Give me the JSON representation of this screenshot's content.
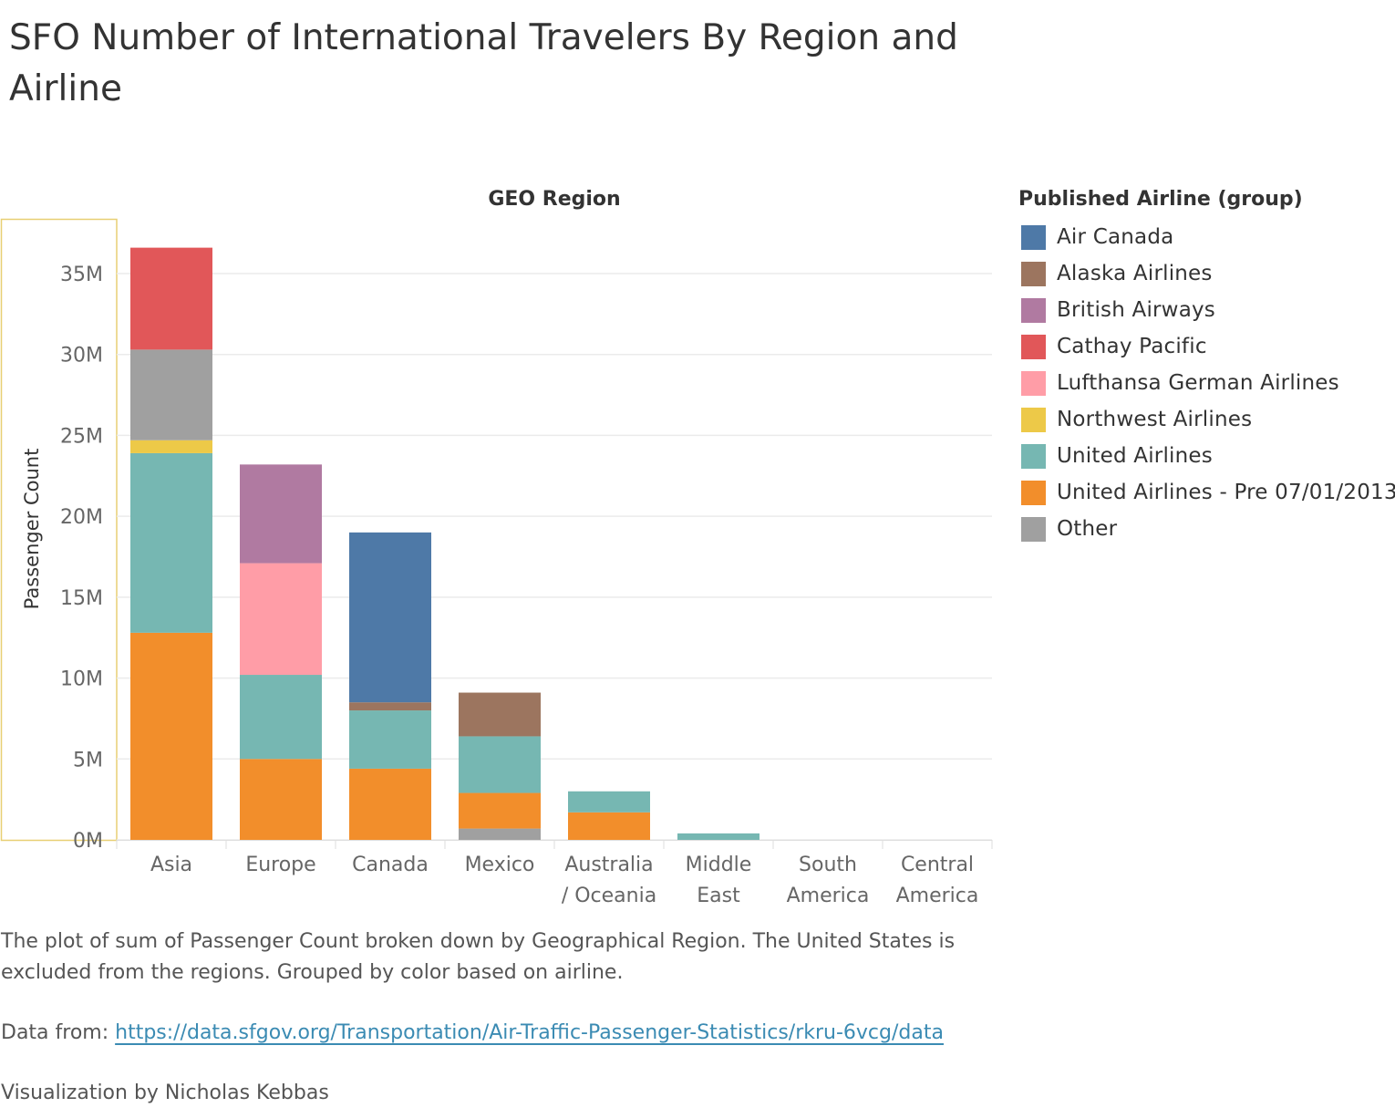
{
  "title": "SFO Number of International Travelers By Region and Airline",
  "colors": {
    "Air Canada": "#4e79a7",
    "Alaska Airlines": "#9c755f",
    "British Airways": "#b07aa1",
    "Cathay Pacific": "#e15759",
    "Lufthansa German Airlines": "#ff9da7",
    "Northwest Airlines": "#edc948",
    "United Airlines": "#76b7b2",
    "United Airlines - Pre 07/01/2013": "#f28e2b",
    "Other": "#a0a0a0"
  },
  "legend": {
    "title": "Published Airline (group)",
    "items": [
      "Air Canada",
      "Alaska Airlines",
      "British Airways",
      "Cathay Pacific",
      "Lufthansa German Airlines",
      "Northwest Airlines",
      "United Airlines",
      "United Airlines - Pre 07/01/2013",
      "Other"
    ]
  },
  "chart_data": {
    "type": "bar",
    "stacked": true,
    "column_header": "GEO Region",
    "ylabel": "Passenger Count",
    "xlabel": "",
    "ylim": [
      0,
      38000000
    ],
    "yticks": [
      0,
      5000000,
      10000000,
      15000000,
      20000000,
      25000000,
      30000000,
      35000000
    ],
    "ytick_labels": [
      "0M",
      "5M",
      "10M",
      "15M",
      "20M",
      "25M",
      "30M",
      "35M"
    ],
    "grid": true,
    "legend_position": "right",
    "categories": [
      [
        "Asia"
      ],
      [
        "Europe"
      ],
      [
        "Canada"
      ],
      [
        "Mexico"
      ],
      [
        "Australia",
        "/ Oceania"
      ],
      [
        "Middle",
        "East"
      ],
      [
        "South",
        "America"
      ],
      [
        "Central",
        "America"
      ]
    ],
    "series": [
      {
        "name": "Other",
        "values": [
          0,
          0,
          0,
          700000,
          0,
          0,
          0,
          0
        ]
      },
      {
        "name": "United Airlines - Pre 07/01/2013",
        "values": [
          12800000,
          5000000,
          4400000,
          2200000,
          1700000,
          0,
          0,
          0
        ]
      },
      {
        "name": "United Airlines",
        "values": [
          11100000,
          5200000,
          3600000,
          3500000,
          1300000,
          400000,
          0,
          0
        ]
      },
      {
        "name": "Northwest Airlines",
        "values": [
          800000,
          0,
          0,
          0,
          0,
          0,
          0,
          0
        ]
      },
      {
        "name": "Alaska Airlines",
        "values": [
          0,
          0,
          500000,
          2700000,
          0,
          0,
          0,
          0
        ]
      },
      {
        "name": "Other",
        "values": [
          5600000,
          0,
          0,
          0,
          0,
          0,
          0,
          0
        ]
      },
      {
        "name": "Lufthansa German Airlines",
        "values": [
          0,
          6900000,
          0,
          0,
          0,
          0,
          0,
          0
        ]
      },
      {
        "name": "British Airways",
        "values": [
          0,
          6100000,
          0,
          0,
          0,
          0,
          0,
          0
        ]
      },
      {
        "name": "Air Canada",
        "values": [
          0,
          0,
          10500000,
          0,
          0,
          0,
          0,
          0
        ]
      },
      {
        "name": "Cathay Pacific",
        "values": [
          6300000,
          0,
          0,
          0,
          0,
          0,
          0,
          0
        ]
      }
    ]
  },
  "caption": "The plot of sum of Passenger Count broken down by Geographical Region. The United States is excluded from the regions.  Grouped by color based on airline.",
  "source": {
    "prefix": "Data from: ",
    "link_text": "https://data.sfgov.org/Transportation/Air-Traffic-Passenger-Statistics/rkru-6vcg/data"
  },
  "credit": "Visualization by Nicholas Kebbas"
}
